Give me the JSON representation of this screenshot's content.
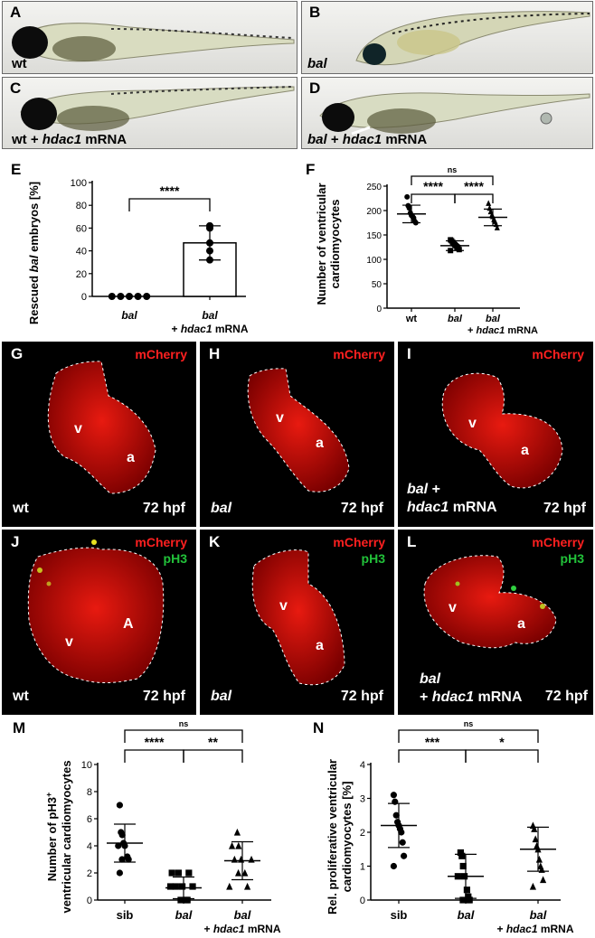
{
  "panels": {
    "A": {
      "letter": "A",
      "label": "wt"
    },
    "B": {
      "letter": "B",
      "label": "bal"
    },
    "C": {
      "letter": "C",
      "label_a": "wt + ",
      "label_b": "hdac1",
      "label_c": " mRNA"
    },
    "D": {
      "letter": "D",
      "label_a": "bal",
      "label_b": " + ",
      "label_c": "hdac1",
      "label_d": " mRNA"
    },
    "G": {
      "letter": "G",
      "channel": "mCherry",
      "chamber_v": "v",
      "chamber_a": "a",
      "genotype": "wt",
      "stage": "72 hpf"
    },
    "H": {
      "letter": "H",
      "channel": "mCherry",
      "chamber_v": "v",
      "chamber_a": "a",
      "genotype": "bal",
      "stage": "72 hpf"
    },
    "I": {
      "letter": "I",
      "channel": "mCherry",
      "chamber_v": "v",
      "chamber_a": "a",
      "genotype_a": "bal",
      "genotype_b": " +",
      "genotype_c": "hdac1",
      "genotype_d": " mRNA",
      "stage": "72 hpf"
    },
    "J": {
      "letter": "J",
      "channel": "mCherry",
      "channel2": "pH3",
      "chamber_v": "v",
      "chamber_a": "A",
      "genotype": "wt",
      "stage": "72 hpf"
    },
    "K": {
      "letter": "K",
      "channel": "mCherry",
      "channel2": "pH3",
      "chamber_v": "v",
      "chamber_a": "a",
      "genotype": "bal",
      "stage": "72 hpf"
    },
    "L": {
      "letter": "L",
      "channel": "mCherry",
      "channel2": "pH3",
      "chamber_v": "v",
      "chamber_a": "a",
      "genotype_a": "bal",
      "genotype_b": "+ ",
      "genotype_c": "hdac1",
      "genotype_d": " mRNA",
      "stage": "72 hpf"
    }
  },
  "chart_data": [
    {
      "panel": "E",
      "type": "bar",
      "categories": [
        "bal",
        "bal + hdac1 mRNA"
      ],
      "values": [
        0,
        47
      ],
      "error": [
        0,
        15
      ],
      "points": [
        [
          0,
          0,
          0,
          0,
          0
        ],
        [
          62,
          60,
          47,
          40,
          32
        ]
      ],
      "ylabel": "Rescued bal embryos [%]",
      "ylim": [
        0,
        100
      ],
      "yticks": [
        0,
        20,
        40,
        60,
        80,
        100
      ],
      "comparisons": [
        {
          "from": 0,
          "to": 1,
          "label": "****"
        }
      ]
    },
    {
      "panel": "F",
      "type": "scatter",
      "categories": [
        "wt",
        "bal",
        "bal + hdac1 mRNA"
      ],
      "means": [
        193,
        128,
        186
      ],
      "sd": [
        18,
        10,
        17
      ],
      "points": [
        [
          228,
          210,
          205,
          195,
          190,
          188,
          185,
          178,
          175
        ],
        [
          140,
          138,
          135,
          132,
          130,
          128,
          126,
          124,
          120,
          118
        ],
        [
          215,
          205,
          198,
          190,
          188,
          182,
          178,
          172,
          165
        ]
      ],
      "ylabel": "Number of ventricular cardiomyocytes",
      "ylim": [
        0,
        250
      ],
      "yticks": [
        0,
        50,
        100,
        150,
        200,
        250
      ],
      "comparisons": [
        {
          "from": 0,
          "to": 1,
          "label": "****"
        },
        {
          "from": 1,
          "to": 2,
          "label": "****"
        },
        {
          "from": 0,
          "to": 2,
          "label": "ns"
        }
      ]
    },
    {
      "panel": "M",
      "type": "scatter",
      "categories": [
        "sib",
        "bal",
        "bal + hdac1 mRNA"
      ],
      "means": [
        4.2,
        0.9,
        2.9
      ],
      "sd": [
        1.4,
        0.8,
        1.4
      ],
      "points": [
        [
          7,
          5,
          4.8,
          4.2,
          4,
          4,
          3.2,
          3,
          3,
          2
        ],
        [
          2,
          2,
          2,
          1,
          1,
          1,
          1,
          0,
          0,
          0
        ],
        [
          5,
          4,
          4,
          3,
          3,
          3,
          2,
          2,
          1,
          1
        ]
      ],
      "ylabel_a": "Number of pH3",
      "ylabel_sup": "+",
      "ylabel_b": "ventricular cardiomyocytes",
      "ylim": [
        0,
        10
      ],
      "yticks": [
        0,
        2,
        4,
        6,
        8,
        10
      ],
      "comparisons": [
        {
          "from": 0,
          "to": 1,
          "label": "****"
        },
        {
          "from": 1,
          "to": 2,
          "label": "**"
        },
        {
          "from": 0,
          "to": 2,
          "label": "ns"
        }
      ]
    },
    {
      "panel": "N",
      "type": "scatter",
      "categories": [
        "sib",
        "bal",
        "bal + hdac1 mRNA"
      ],
      "means": [
        2.2,
        0.7,
        1.5
      ],
      "sd": [
        0.65,
        0.65,
        0.65
      ],
      "points": [
        [
          3.1,
          2.9,
          2.5,
          2.3,
          2.2,
          2.1,
          2.0,
          1.7,
          1.3,
          1.0
        ],
        [
          1.4,
          1.3,
          1.0,
          0.7,
          0.7,
          0.3,
          0.1,
          0.0,
          0.0,
          0.0
        ],
        [
          2.2,
          2.1,
          1.8,
          1.6,
          1.5,
          1.2,
          1.0,
          0.9,
          0.6,
          0.4
        ]
      ],
      "ylabel_a": "Rel. proliferative ventricular",
      "ylabel_b": "cardiomyocytes [%]",
      "ylim": [
        0,
        4
      ],
      "yticks": [
        0,
        1,
        2,
        3,
        4
      ],
      "comparisons": [
        {
          "from": 0,
          "to": 1,
          "label": "***"
        },
        {
          "from": 1,
          "to": 2,
          "label": "*"
        },
        {
          "from": 0,
          "to": 2,
          "label": "ns"
        }
      ]
    }
  ],
  "chart_text": {
    "E": {
      "letter": "E",
      "ylabel_a": "Rescued ",
      "ylabel_b": "bal",
      "ylabel_c": " embryos [%]",
      "cat1": "bal",
      "cat2a": "bal",
      "cat2b": "+ ",
      "cat2c": "hdac1",
      "cat2d": " mRNA"
    },
    "F": {
      "letter": "F",
      "ylabel_a": "Number of ventricular",
      "ylabel_b": "cardiomyocytes",
      "cat1": "wt",
      "cat2": "bal",
      "cat3a": "bal",
      "cat3b": "+ ",
      "cat3c": "hdac1",
      "cat3d": " mRNA"
    },
    "M": {
      "letter": "M",
      "cat1": "sib",
      "cat2": "bal",
      "cat3a": "bal",
      "cat3b": "+ ",
      "cat3c": "hdac1",
      "cat3d": " mRNA"
    },
    "N": {
      "letter": "N",
      "cat1": "sib",
      "cat2": "bal",
      "cat3a": "bal",
      "cat3b": "+ ",
      "cat3c": "hdac1",
      "cat3d": " mRNA"
    }
  },
  "colors": {
    "mcherry": "#ff2020",
    "ph3": "#22c23a",
    "white": "#ffffff"
  }
}
